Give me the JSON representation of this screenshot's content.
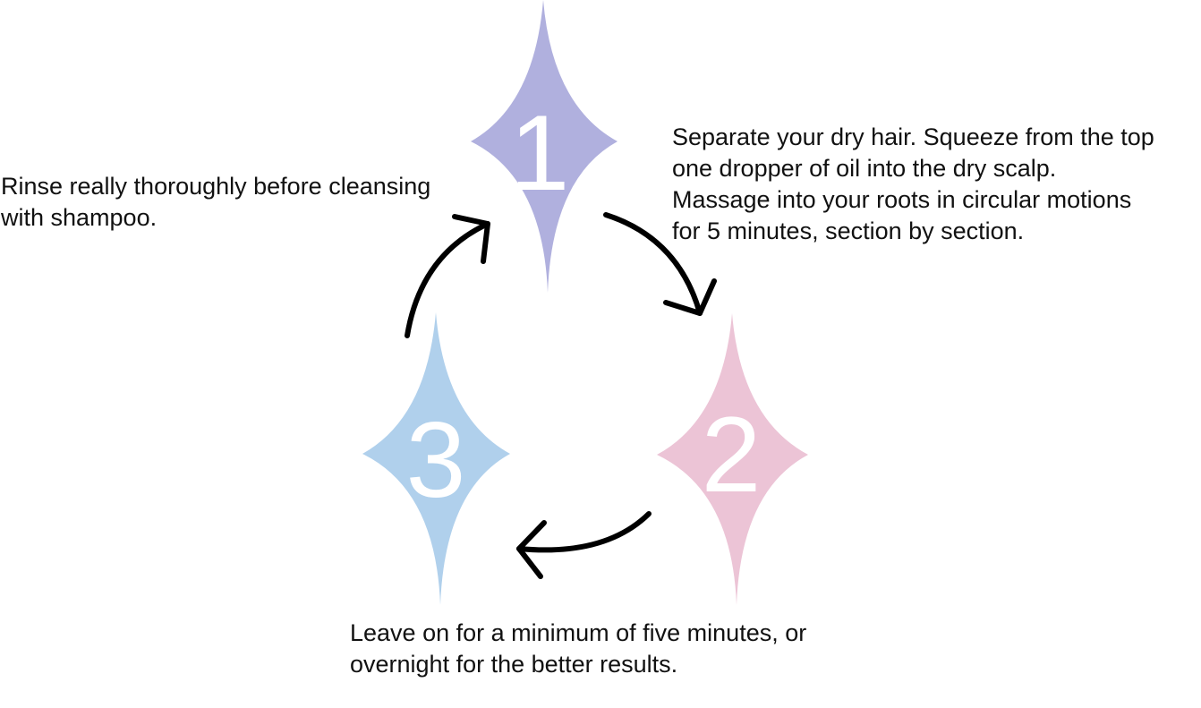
{
  "steps": [
    {
      "number": "1",
      "color": "#B0B0DE",
      "caption_lines": [
        "Separate your dry hair. Squeeze from the top",
        "one dropper of oil into the dry scalp.",
        "Massage into your roots in circular motions",
        "for 5 minutes, section by section."
      ]
    },
    {
      "number": "2",
      "color": "#ECC4D6",
      "caption_lines": []
    },
    {
      "number": "3",
      "color": "#B0D0EC",
      "caption_lines": [
        "Leave on for a minimum of five minutes, or",
        "overnight for the better results."
      ]
    }
  ],
  "rinse_caption_lines": [
    "Rinse really thoroughly before cleansing",
    "with shampoo."
  ],
  "arrow_color": "#000000"
}
